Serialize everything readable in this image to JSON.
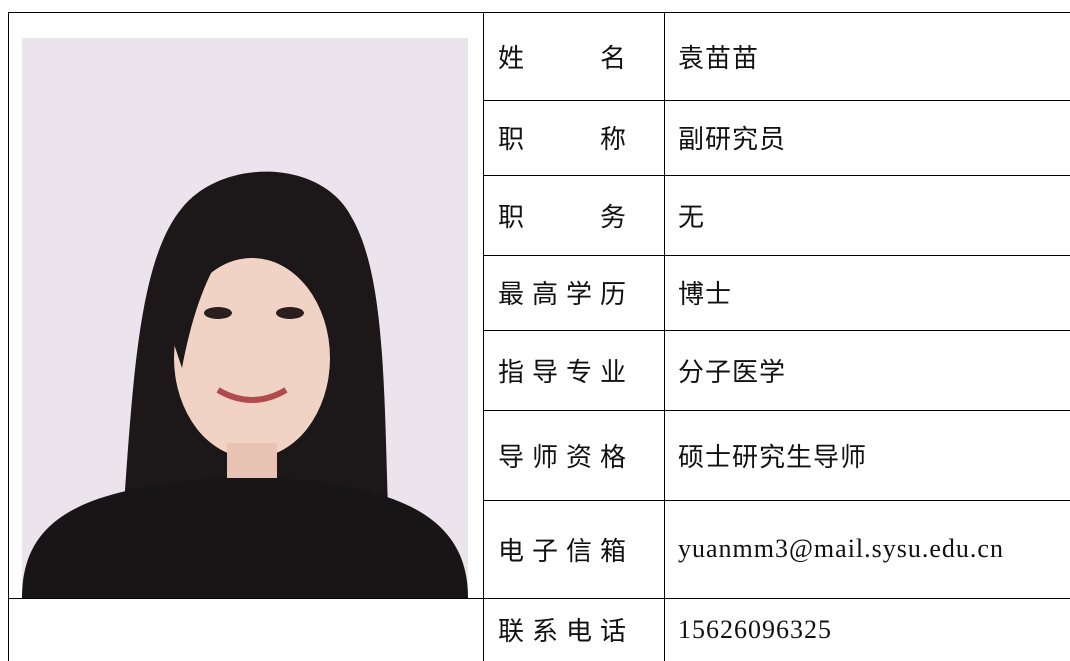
{
  "table": {
    "rows": [
      {
        "label": "姓名",
        "value": "袁苗苗"
      },
      {
        "label": "职称",
        "value": "副研究员"
      },
      {
        "label": "职务",
        "value": "无"
      },
      {
        "label": "最高学历",
        "value": "博士"
      },
      {
        "label": "指导专业",
        "value": "分子医学"
      },
      {
        "label": "导师资格",
        "value": "硕士研究生导师"
      },
      {
        "label": "电子信箱",
        "value": "yuanmm3@mail.sysu.edu.cn"
      },
      {
        "label": "联系电话",
        "value": "15626096325"
      }
    ]
  }
}
